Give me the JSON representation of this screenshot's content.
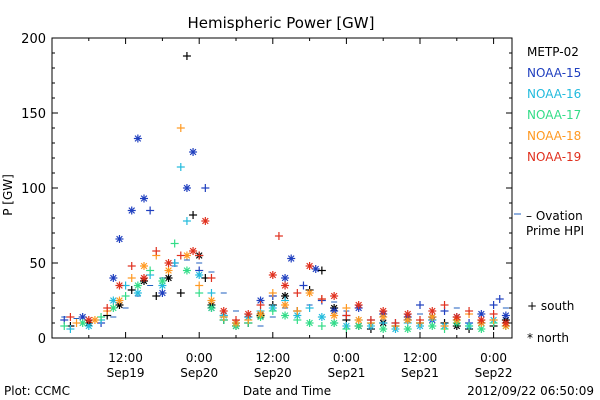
{
  "colors": {
    "METP-02": "#000000",
    "NOAA-15": "#1f3fbf",
    "NOAA-16": "#22bbdd",
    "NOAA-17": "#33dd88",
    "NOAA-18": "#ff9922",
    "NOAA-19": "#e0301e",
    "ovation": "#1f5fbf"
  },
  "footer": {
    "left": "Plot: CCMC",
    "right": "2012/09/22 06:50:09"
  },
  "chart_data": {
    "type": "scatter",
    "title": "Hemispheric Power [GW]",
    "xlabel": "Date and Time",
    "ylabel": "P [GW]",
    "xlim_hours": [
      0,
      75
    ],
    "ylim": [
      0,
      200
    ],
    "y_ticks": [
      0,
      50,
      100,
      150,
      200
    ],
    "x_ticks": [
      {
        "h": 12,
        "label1": "12:00",
        "label2": "Sep19"
      },
      {
        "h": 24,
        "label1": "0:00",
        "label2": "Sep20"
      },
      {
        "h": 36,
        "label1": "12:00",
        "label2": "Sep20"
      },
      {
        "h": 48,
        "label1": "0:00",
        "label2": "Sep21"
      },
      {
        "h": 60,
        "label1": "12:00",
        "label2": "Sep21"
      },
      {
        "h": 72,
        "label1": "0:00",
        "label2": "Sep22"
      }
    ],
    "legend": [
      "METP-02",
      "NOAA-15",
      "NOAA-16",
      "NOAA-17",
      "NOAA-18",
      "NOAA-19"
    ],
    "ovation_label": [
      "– Ovation",
      "Prime HPI"
    ],
    "hemisphere_key": [
      "+ south",
      "* north"
    ],
    "series": [
      {
        "name": "METP-02",
        "points": [
          [
            3,
            8,
            "s"
          ],
          [
            6,
            10,
            "n"
          ],
          [
            9,
            15,
            "s"
          ],
          [
            11,
            22,
            "n"
          ],
          [
            13,
            32,
            "s"
          ],
          [
            15,
            38,
            "n"
          ],
          [
            17,
            28,
            "s"
          ],
          [
            19,
            40,
            "n"
          ],
          [
            21,
            30,
            "s"
          ],
          [
            22,
            188,
            "s"
          ],
          [
            23,
            82,
            "s"
          ],
          [
            24,
            55,
            "n"
          ],
          [
            25,
            40,
            "s"
          ],
          [
            26,
            22,
            "n"
          ],
          [
            28,
            12,
            "s"
          ],
          [
            30,
            8,
            "n"
          ],
          [
            32,
            10,
            "s"
          ],
          [
            34,
            15,
            "n"
          ],
          [
            36,
            22,
            "s"
          ],
          [
            38,
            28,
            "n"
          ],
          [
            40,
            18,
            "s"
          ],
          [
            42,
            32,
            "s"
          ],
          [
            44,
            45,
            "s"
          ],
          [
            46,
            20,
            "n"
          ],
          [
            48,
            12,
            "s"
          ],
          [
            50,
            8,
            "n"
          ],
          [
            52,
            6,
            "s"
          ],
          [
            54,
            10,
            "n"
          ],
          [
            56,
            8,
            "s"
          ],
          [
            58,
            12,
            "n"
          ],
          [
            60,
            10,
            "s"
          ],
          [
            62,
            14,
            "n"
          ],
          [
            64,
            10,
            "s"
          ],
          [
            66,
            8,
            "n"
          ],
          [
            68,
            6,
            "s"
          ],
          [
            70,
            10,
            "n"
          ],
          [
            72,
            8,
            "s"
          ],
          [
            74,
            12,
            "n"
          ]
        ]
      },
      {
        "name": "NOAA-15",
        "points": [
          [
            2,
            12,
            "s"
          ],
          [
            5,
            14,
            "n"
          ],
          [
            8,
            10,
            "s"
          ],
          [
            10,
            40,
            "n"
          ],
          [
            11,
            66,
            "n"
          ],
          [
            13,
            85,
            "n"
          ],
          [
            14,
            133,
            "n"
          ],
          [
            15,
            93,
            "n"
          ],
          [
            16,
            85,
            "s"
          ],
          [
            18,
            30,
            "n"
          ],
          [
            20,
            50,
            "s"
          ],
          [
            22,
            100,
            "n"
          ],
          [
            23,
            124,
            "n"
          ],
          [
            24,
            45,
            "s"
          ],
          [
            25,
            100,
            "s"
          ],
          [
            26,
            20,
            "n"
          ],
          [
            28,
            15,
            "s"
          ],
          [
            30,
            10,
            "n"
          ],
          [
            32,
            14,
            "s"
          ],
          [
            34,
            25,
            "n"
          ],
          [
            36,
            28,
            "s"
          ],
          [
            38,
            40,
            "n"
          ],
          [
            39,
            53,
            "n"
          ],
          [
            41,
            35,
            "s"
          ],
          [
            43,
            46,
            "n"
          ],
          [
            44,
            25,
            "s"
          ],
          [
            46,
            18,
            "n"
          ],
          [
            48,
            15,
            "s"
          ],
          [
            50,
            20,
            "n"
          ],
          [
            52,
            12,
            "s"
          ],
          [
            54,
            16,
            "n"
          ],
          [
            56,
            10,
            "s"
          ],
          [
            58,
            14,
            "n"
          ],
          [
            60,
            22,
            "s"
          ],
          [
            62,
            12,
            "n"
          ],
          [
            64,
            18,
            "s"
          ],
          [
            66,
            14,
            "n"
          ],
          [
            68,
            10,
            "s"
          ],
          [
            70,
            16,
            "n"
          ],
          [
            72,
            22,
            "s"
          ],
          [
            73,
            26,
            "s"
          ],
          [
            74,
            15,
            "n"
          ]
        ]
      },
      {
        "name": "NOAA-16",
        "points": [
          [
            3,
            6,
            "s"
          ],
          [
            6,
            8,
            "n"
          ],
          [
            8,
            12,
            "s"
          ],
          [
            10,
            25,
            "n"
          ],
          [
            12,
            35,
            "s"
          ],
          [
            14,
            30,
            "n"
          ],
          [
            16,
            42,
            "s"
          ],
          [
            18,
            35,
            "n"
          ],
          [
            20,
            50,
            "s"
          ],
          [
            21,
            114,
            "s"
          ],
          [
            22,
            78,
            "s"
          ],
          [
            24,
            42,
            "n"
          ],
          [
            26,
            30,
            "s"
          ],
          [
            28,
            15,
            "n"
          ],
          [
            30,
            10,
            "s"
          ],
          [
            32,
            14,
            "n"
          ],
          [
            34,
            18,
            "s"
          ],
          [
            36,
            20,
            "n"
          ],
          [
            38,
            25,
            "s"
          ],
          [
            40,
            15,
            "n"
          ],
          [
            42,
            20,
            "s"
          ],
          [
            44,
            14,
            "n"
          ],
          [
            46,
            10,
            "s"
          ],
          [
            48,
            8,
            "n"
          ],
          [
            50,
            12,
            "s"
          ],
          [
            52,
            8,
            "n"
          ],
          [
            54,
            10,
            "s"
          ],
          [
            56,
            6,
            "n"
          ],
          [
            58,
            10,
            "s"
          ],
          [
            60,
            8,
            "n"
          ],
          [
            62,
            12,
            "s"
          ],
          [
            64,
            8,
            "n"
          ],
          [
            66,
            12,
            "s"
          ],
          [
            68,
            8,
            "n"
          ],
          [
            70,
            10,
            "s"
          ],
          [
            72,
            12,
            "n"
          ],
          [
            74,
            8,
            "s"
          ]
        ]
      },
      {
        "name": "NOAA-17",
        "points": [
          [
            2,
            8,
            "s"
          ],
          [
            5,
            10,
            "n"
          ],
          [
            8,
            14,
            "s"
          ],
          [
            10,
            20,
            "n"
          ],
          [
            12,
            28,
            "s"
          ],
          [
            14,
            35,
            "n"
          ],
          [
            16,
            45,
            "s"
          ],
          [
            18,
            38,
            "n"
          ],
          [
            20,
            63,
            "s"
          ],
          [
            22,
            45,
            "n"
          ],
          [
            24,
            30,
            "s"
          ],
          [
            26,
            20,
            "n"
          ],
          [
            28,
            12,
            "s"
          ],
          [
            30,
            8,
            "n"
          ],
          [
            32,
            10,
            "s"
          ],
          [
            34,
            14,
            "n"
          ],
          [
            36,
            18,
            "s"
          ],
          [
            38,
            15,
            "n"
          ],
          [
            40,
            12,
            "s"
          ],
          [
            42,
            10,
            "n"
          ],
          [
            44,
            8,
            "s"
          ],
          [
            46,
            10,
            "n"
          ],
          [
            48,
            6,
            "s"
          ],
          [
            50,
            8,
            "n"
          ],
          [
            52,
            10,
            "s"
          ],
          [
            54,
            6,
            "n"
          ],
          [
            56,
            8,
            "s"
          ],
          [
            58,
            6,
            "n"
          ],
          [
            60,
            10,
            "s"
          ],
          [
            62,
            8,
            "n"
          ],
          [
            64,
            6,
            "s"
          ],
          [
            66,
            10,
            "n"
          ],
          [
            68,
            8,
            "s"
          ],
          [
            70,
            6,
            "n"
          ],
          [
            72,
            10,
            "s"
          ],
          [
            74,
            8,
            "n"
          ]
        ]
      },
      {
        "name": "NOAA-18",
        "points": [
          [
            4,
            10,
            "s"
          ],
          [
            7,
            12,
            "n"
          ],
          [
            9,
            18,
            "s"
          ],
          [
            11,
            25,
            "n"
          ],
          [
            13,
            40,
            "s"
          ],
          [
            15,
            48,
            "n"
          ],
          [
            17,
            55,
            "s"
          ],
          [
            19,
            45,
            "n"
          ],
          [
            21,
            140,
            "s"
          ],
          [
            22,
            55,
            "n"
          ],
          [
            24,
            35,
            "s"
          ],
          [
            26,
            25,
            "n"
          ],
          [
            28,
            14,
            "s"
          ],
          [
            30,
            10,
            "n"
          ],
          [
            32,
            12,
            "s"
          ],
          [
            34,
            16,
            "n"
          ],
          [
            36,
            30,
            "s"
          ],
          [
            38,
            22,
            "n"
          ],
          [
            40,
            18,
            "s"
          ],
          [
            42,
            30,
            "n"
          ],
          [
            44,
            26,
            "s"
          ],
          [
            46,
            15,
            "n"
          ],
          [
            48,
            20,
            "s"
          ],
          [
            50,
            12,
            "n"
          ],
          [
            52,
            10,
            "s"
          ],
          [
            54,
            14,
            "n"
          ],
          [
            56,
            8,
            "s"
          ],
          [
            58,
            12,
            "n"
          ],
          [
            60,
            10,
            "s"
          ],
          [
            62,
            14,
            "n"
          ],
          [
            64,
            8,
            "s"
          ],
          [
            66,
            12,
            "n"
          ],
          [
            68,
            16,
            "s"
          ],
          [
            70,
            10,
            "n"
          ],
          [
            72,
            12,
            "s"
          ],
          [
            74,
            8,
            "n"
          ]
        ]
      },
      {
        "name": "NOAA-19",
        "points": [
          [
            3,
            14,
            "s"
          ],
          [
            6,
            12,
            "n"
          ],
          [
            9,
            20,
            "s"
          ],
          [
            11,
            35,
            "n"
          ],
          [
            13,
            48,
            "s"
          ],
          [
            15,
            40,
            "n"
          ],
          [
            17,
            58,
            "s"
          ],
          [
            19,
            50,
            "n"
          ],
          [
            21,
            55,
            "s"
          ],
          [
            23,
            58,
            "n"
          ],
          [
            24,
            55,
            "s"
          ],
          [
            25,
            78,
            "n"
          ],
          [
            26,
            40,
            "s"
          ],
          [
            28,
            18,
            "n"
          ],
          [
            30,
            12,
            "s"
          ],
          [
            32,
            16,
            "n"
          ],
          [
            34,
            22,
            "s"
          ],
          [
            36,
            42,
            "n"
          ],
          [
            37,
            68,
            "s"
          ],
          [
            38,
            35,
            "n"
          ],
          [
            40,
            30,
            "s"
          ],
          [
            42,
            48,
            "n"
          ],
          [
            44,
            26,
            "s"
          ],
          [
            46,
            28,
            "n"
          ],
          [
            48,
            15,
            "s"
          ],
          [
            50,
            22,
            "n"
          ],
          [
            52,
            12,
            "s"
          ],
          [
            54,
            18,
            "n"
          ],
          [
            56,
            10,
            "s"
          ],
          [
            58,
            16,
            "n"
          ],
          [
            60,
            12,
            "s"
          ],
          [
            62,
            18,
            "n"
          ],
          [
            64,
            22,
            "s"
          ],
          [
            66,
            14,
            "n"
          ],
          [
            68,
            18,
            "s"
          ],
          [
            70,
            12,
            "n"
          ],
          [
            72,
            16,
            "s"
          ],
          [
            74,
            10,
            "n"
          ]
        ]
      }
    ],
    "ovation_hpi": [
      [
        2,
        14
      ],
      [
        4,
        13
      ],
      [
        6,
        12
      ],
      [
        8,
        10
      ],
      [
        10,
        14
      ],
      [
        12,
        20
      ],
      [
        14,
        28
      ],
      [
        16,
        35
      ],
      [
        18,
        40
      ],
      [
        20,
        48
      ],
      [
        22,
        52
      ],
      [
        24,
        50
      ],
      [
        26,
        44
      ],
      [
        28,
        30
      ],
      [
        30,
        18
      ],
      [
        32,
        10
      ],
      [
        34,
        8
      ],
      [
        36,
        14
      ],
      [
        38,
        20
      ],
      [
        40,
        18
      ],
      [
        42,
        22
      ],
      [
        44,
        25
      ],
      [
        46,
        24
      ],
      [
        48,
        18
      ],
      [
        50,
        12
      ],
      [
        52,
        10
      ],
      [
        54,
        12
      ],
      [
        56,
        8
      ],
      [
        58,
        12
      ],
      [
        60,
        16
      ],
      [
        62,
        14
      ],
      [
        64,
        18
      ],
      [
        66,
        20
      ],
      [
        68,
        16
      ],
      [
        70,
        12
      ],
      [
        72,
        16
      ],
      [
        74,
        20
      ]
    ]
  }
}
